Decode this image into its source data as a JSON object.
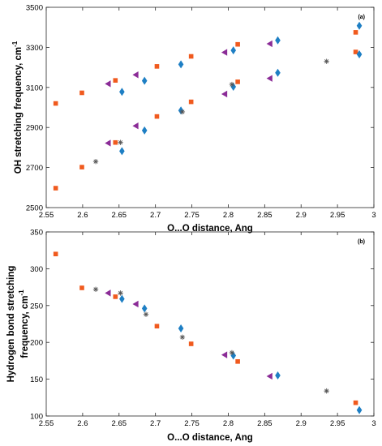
{
  "chart_data": [
    {
      "type": "scatter",
      "title": "",
      "panel_label": "(a)",
      "xlabel": "O...O distance, Ang",
      "ylabel": "OH stretching frequency, cm-1",
      "ylabel_main": "OH stretching frequency, cm",
      "ylabel_sup": "-1",
      "xlim": [
        2.55,
        3.0
      ],
      "ylim": [
        2500,
        3500
      ],
      "xticks": [
        "2.55",
        "2.6",
        "2.65",
        "2.7",
        "2.75",
        "2.8",
        "2.85",
        "2.9",
        "2.95",
        "3"
      ],
      "yticks": [
        "2500",
        "2700",
        "2900",
        "3100",
        "3300",
        "3500"
      ],
      "grid": false,
      "series": [
        {
          "marker": "square",
          "color": "#F05A1E",
          "points": [
            [
              2.563,
              3020
            ],
            [
              2.563,
              2597
            ],
            [
              2.599,
              3073
            ],
            [
              2.599,
              2702
            ],
            [
              2.645,
              3135
            ],
            [
              2.645,
              2825
            ],
            [
              2.702,
              3205
            ],
            [
              2.702,
              2955
            ],
            [
              2.749,
              3255
            ],
            [
              2.749,
              3028
            ],
            [
              2.813,
              3315
            ],
            [
              2.813,
              3128
            ],
            [
              2.975,
              3375
            ],
            [
              2.975,
              3277
            ]
          ]
        },
        {
          "marker": "diamond",
          "color": "#1E7FC4",
          "points": [
            [
              2.654,
              3078
            ],
            [
              2.654,
              2782
            ],
            [
              2.685,
              3133
            ],
            [
              2.685,
              2885
            ],
            [
              2.735,
              3215
            ],
            [
              2.735,
              2985
            ],
            [
              2.807,
              3285
            ],
            [
              2.807,
              3103
            ],
            [
              2.868,
              3335
            ],
            [
              2.868,
              3173
            ],
            [
              2.98,
              3408
            ],
            [
              2.98,
              3265
            ]
          ]
        },
        {
          "marker": "triangle-left",
          "color": "#8B2C97",
          "points": [
            [
              2.635,
              3118
            ],
            [
              2.635,
              2822
            ],
            [
              2.673,
              3163
            ],
            [
              2.673,
              2908
            ],
            [
              2.795,
              3275
            ],
            [
              2.795,
              3067
            ],
            [
              2.857,
              3318
            ],
            [
              2.857,
              3145
            ]
          ]
        },
        {
          "marker": "asterisk",
          "color": "#555555",
          "points": [
            [
              2.618,
              2730
            ],
            [
              2.652,
              2825
            ],
            [
              2.737,
              2978
            ],
            [
              2.805,
              3115
            ],
            [
              2.935,
              3230
            ]
          ]
        }
      ]
    },
    {
      "type": "scatter",
      "title": "",
      "panel_label": "(b)",
      "xlabel": "O...O distance, Ang",
      "ylabel": "Hydrogen bond stretching frequency, cm-1",
      "ylabel_line1": "Hydrogen bond stretching",
      "ylabel_line2_main": "frequency, cm",
      "ylabel_line2_sup": "-1",
      "xlim": [
        2.55,
        3.0
      ],
      "ylim": [
        100,
        350
      ],
      "xticks": [
        "2.55",
        "2.6",
        "2.65",
        "2.7",
        "2.75",
        "2.8",
        "2.85",
        "2.9",
        "2.95",
        "3"
      ],
      "yticks": [
        "100",
        "150",
        "200",
        "250",
        "300",
        "350"
      ],
      "grid": false,
      "series": [
        {
          "marker": "square",
          "color": "#F05A1E",
          "points": [
            [
              2.563,
              320
            ],
            [
              2.599,
              274
            ],
            [
              2.645,
              262
            ],
            [
              2.702,
              222
            ],
            [
              2.749,
              198
            ],
            [
              2.813,
              174
            ],
            [
              2.975,
              118
            ]
          ]
        },
        {
          "marker": "diamond",
          "color": "#1E7FC4",
          "points": [
            [
              2.654,
              259
            ],
            [
              2.685,
              246
            ],
            [
              2.735,
              219
            ],
            [
              2.807,
              182
            ],
            [
              2.868,
              155
            ],
            [
              2.98,
              108
            ]
          ]
        },
        {
          "marker": "triangle-left",
          "color": "#8B2C97",
          "points": [
            [
              2.635,
              267
            ],
            [
              2.673,
              252
            ],
            [
              2.795,
              183
            ],
            [
              2.857,
              154
            ]
          ]
        },
        {
          "marker": "asterisk",
          "color": "#555555",
          "points": [
            [
              2.618,
              272
            ],
            [
              2.652,
              267
            ],
            [
              2.687,
              238
            ],
            [
              2.737,
              207
            ],
            [
              2.805,
              186
            ],
            [
              2.935,
              134
            ]
          ]
        }
      ]
    }
  ]
}
